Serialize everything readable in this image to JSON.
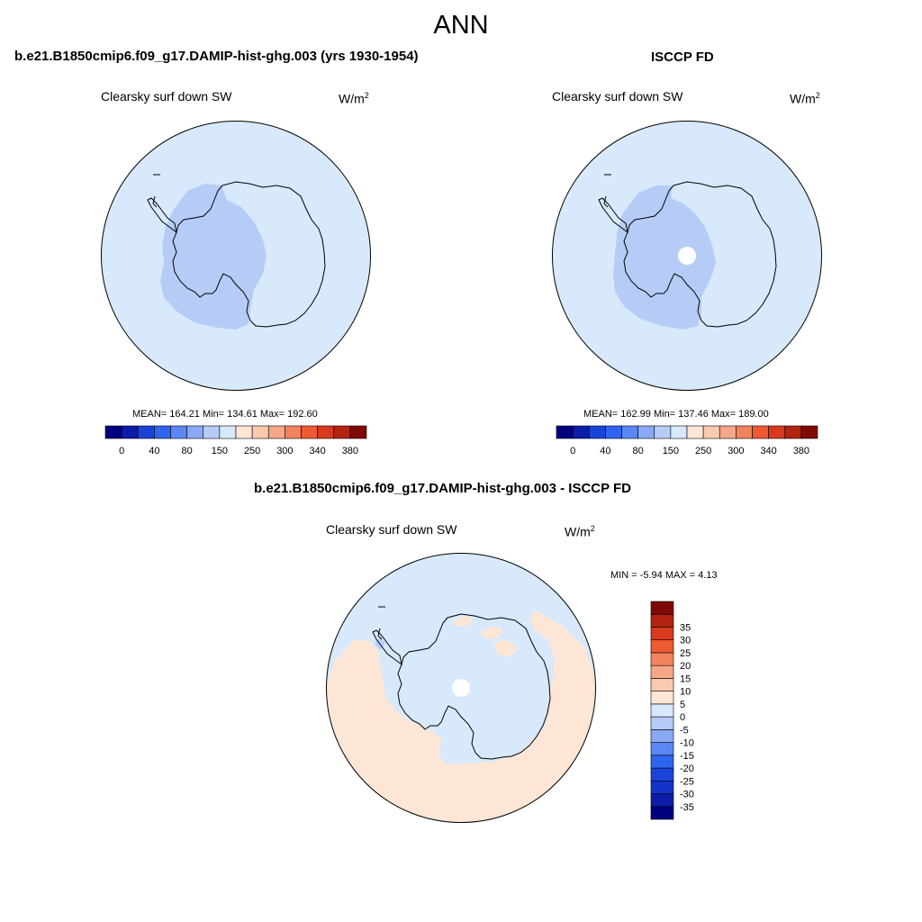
{
  "figure": {
    "title": "ANN"
  },
  "panels": [
    {
      "title": "b.e21.B1850cmip6.f09_g17.DAMIP-hist-ghg.003 (yrs 1930-1954)",
      "variable": "Clearsky surf down SW",
      "units": "W/m",
      "units_exp": "2",
      "stats_text": "MEAN= 164.21  Min= 134.61  Max= 192.60",
      "stats": {
        "mean": 164.21,
        "min": 134.61,
        "max": 192.6
      }
    },
    {
      "title": "ISCCP FD",
      "variable": "Clearsky surf down SW",
      "units": "W/m",
      "units_exp": "2",
      "stats_text": "MEAN= 162.99  Min= 137.46  Max= 189.00",
      "stats": {
        "mean": 162.99,
        "min": 137.46,
        "max": 189.0
      }
    },
    {
      "title": "b.e21.B1850cmip6.f09_g17.DAMIP-hist-ghg.003 - ISCCP FD",
      "variable": "Clearsky surf down SW",
      "units": "W/m",
      "units_exp": "2",
      "stats_text": "MIN =  -5.94 MAX =   4.13",
      "stats": {
        "min": -5.94,
        "max": 4.13
      }
    }
  ],
  "colorbars": {
    "top": {
      "colors": [
        "#00007f",
        "#0a1ca8",
        "#1a44d9",
        "#2f64f0",
        "#5b87f5",
        "#8aa8f5",
        "#b7cbf7",
        "#d8e8fb",
        "#fde6d6",
        "#f9c9b0",
        "#f6a789",
        "#f3835f",
        "#ee5a32",
        "#d9391c",
        "#b22410",
        "#7f0a05"
      ],
      "tick_labels": [
        "0",
        "40",
        "80",
        "150",
        "250",
        "300",
        "340",
        "380"
      ]
    },
    "diff": {
      "colors": [
        "#00007f",
        "#0a1ca8",
        "#1433c8",
        "#1a44d9",
        "#2f64f0",
        "#5b87f5",
        "#8aa8f5",
        "#b7cbf7",
        "#d8e8fb",
        "#fde6d6",
        "#f9c9b0",
        "#f6a789",
        "#f3835f",
        "#ee5a32",
        "#d9391c",
        "#b22410",
        "#7f0a05"
      ],
      "tick_labels": [
        "-35",
        "-30",
        "-25",
        "-20",
        "-15",
        "-10",
        "-5",
        "0",
        "5",
        "10",
        "15",
        "20",
        "25",
        "30",
        "35"
      ]
    }
  },
  "colors": {
    "ocean_level": "#d7e9fb",
    "mid_blue": "#b5ccf7",
    "light_orange": "#fde6d6",
    "hole": "#ffffff"
  }
}
